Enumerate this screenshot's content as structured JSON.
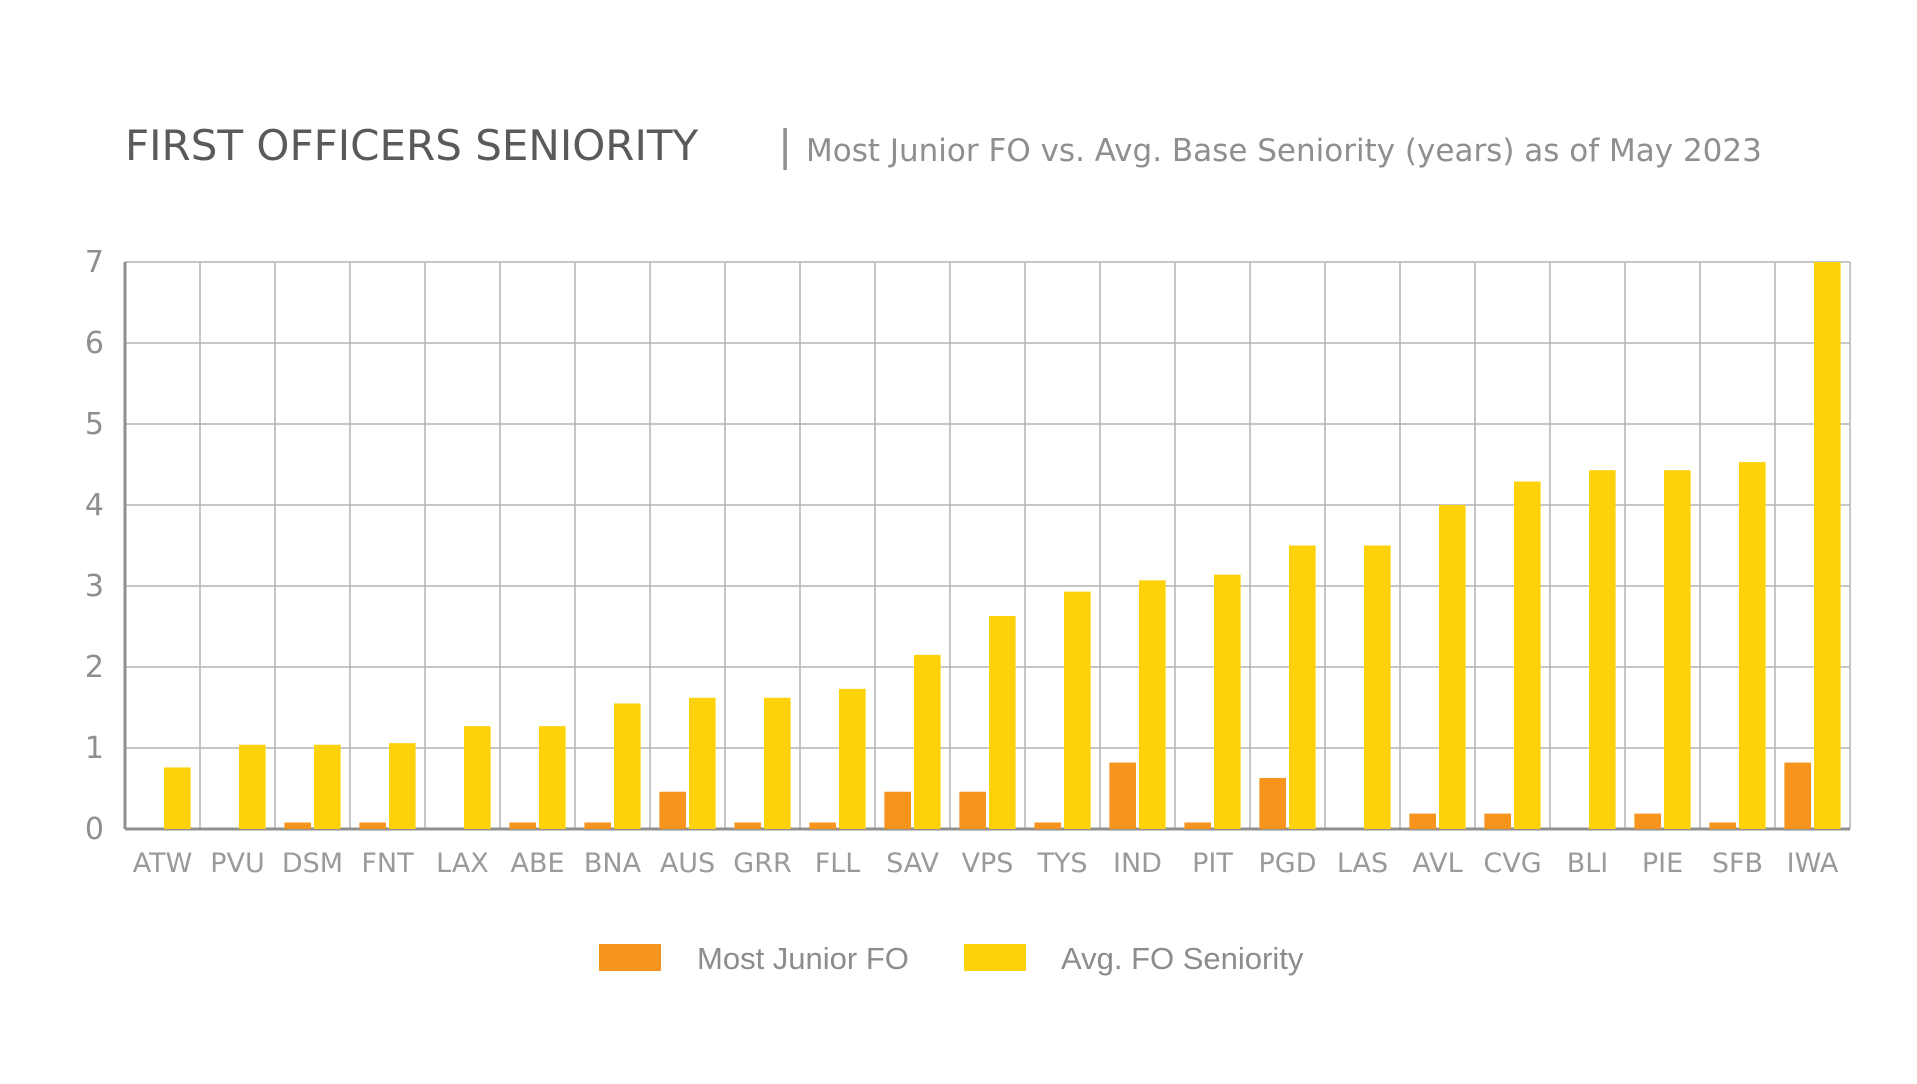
{
  "chart_data": {
    "type": "bar",
    "title": "FIRST OFFICERS SENIORITY",
    "title_separator": "|",
    "subtitle": "Most Junior FO vs. Avg. Base Seniority (years) as of May 2023",
    "categories": [
      "ATW",
      "PVU",
      "DSM",
      "FNT",
      "LAX",
      "ABE",
      "BNA",
      "AUS",
      "GRR",
      "FLL",
      "SAV",
      "VPS",
      "TYS",
      "IND",
      "PIT",
      "PGD",
      "LAS",
      "AVL",
      "CVG",
      "BLI",
      "PIE",
      "SFB",
      "IWA"
    ],
    "series": [
      {
        "name": "Most Junior FO",
        "color": "#f7941d",
        "values": [
          0,
          0,
          0.08,
          0.08,
          0,
          0.08,
          0.08,
          0.46,
          0.08,
          0.08,
          0.46,
          0.46,
          0.08,
          0.82,
          0.08,
          0.63,
          0,
          0.19,
          0.19,
          0,
          0.19,
          0.08,
          0.82
        ]
      },
      {
        "name": "Avg. FO Seniority",
        "color": "#fdd20a",
        "values": [
          0.76,
          1.04,
          1.04,
          1.06,
          1.27,
          1.27,
          1.55,
          1.62,
          1.62,
          1.73,
          2.15,
          2.63,
          2.93,
          3.07,
          3.14,
          3.5,
          3.5,
          4.0,
          4.29,
          4.43,
          4.43,
          4.53,
          7.0
        ]
      }
    ],
    "yticks": [
      "0",
      "1",
      "2",
      "3",
      "4",
      "5",
      "6",
      "7"
    ],
    "ylim": [
      0,
      7
    ],
    "grid": true,
    "legend": "bottom-center",
    "xlabel": "",
    "ylabel": ""
  }
}
